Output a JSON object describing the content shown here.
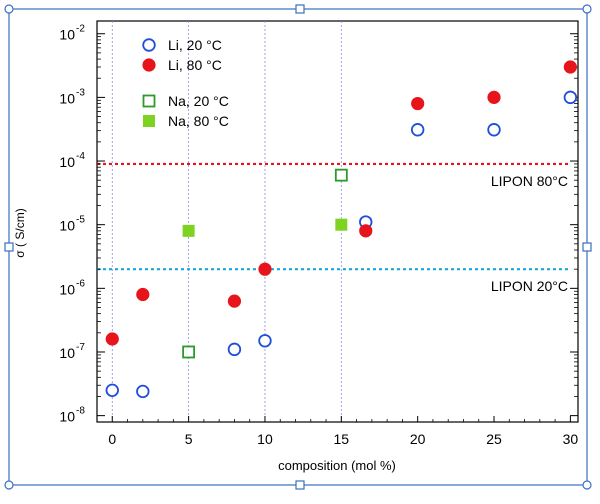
{
  "chart_data": {
    "type": "scatter",
    "xlabel": "composition (mol %)",
    "ylabel": "σ ( S/cm)",
    "xlim": [
      -1,
      30.5
    ],
    "ylim_log10": [
      -8.1,
      -1.8
    ],
    "y_scale": "log",
    "x_ticks": [
      0,
      5,
      10,
      15,
      20,
      25,
      30
    ],
    "x_tick_labels": [
      "0",
      "5",
      "10",
      "15",
      "20",
      "25",
      "30"
    ],
    "y_ticks_exp": [
      -8,
      -7,
      -6,
      -5,
      -4,
      -3,
      -2
    ],
    "y_tick_base": "10",
    "y_tick_exps": [
      "-8",
      "-7",
      "-6",
      "-5",
      "-4",
      "-3",
      "-2"
    ],
    "vertical_gridlines_at": [
      0,
      5,
      10,
      15
    ],
    "legend_position": "top-left",
    "series": [
      {
        "name": "Li, 20 °C",
        "marker": "open-circle",
        "color": "#1f4fd8",
        "points": [
          [
            0,
            2.5e-08
          ],
          [
            2,
            2.4e-08
          ],
          [
            8,
            1.1e-07
          ],
          [
            10,
            1.5e-07
          ],
          [
            16.6,
            1.1e-05
          ],
          [
            20,
            0.00031
          ],
          [
            25,
            0.00031
          ],
          [
            30,
            0.001
          ]
        ]
      },
      {
        "name": "Li, 80 °C",
        "marker": "filled-circle",
        "color": "#e8141b",
        "points": [
          [
            0,
            1.6e-07
          ],
          [
            2,
            8e-07
          ],
          [
            8,
            6.3e-07
          ],
          [
            10,
            2e-06
          ],
          [
            16.6,
            8e-06
          ],
          [
            20,
            0.0008
          ],
          [
            25,
            0.001
          ],
          [
            30,
            0.003
          ]
        ]
      },
      {
        "name": "Na, 20 °C",
        "marker": "open-square",
        "color": "#2a9a2a",
        "points": [
          [
            5,
            1e-07
          ],
          [
            15,
            6e-05
          ]
        ]
      },
      {
        "name": "Na, 80 °C",
        "marker": "filled-square",
        "color": "#7ed321",
        "points": [
          [
            5,
            8e-06
          ],
          [
            15,
            1e-05
          ]
        ]
      }
    ],
    "reference_lines": [
      {
        "label": "LIPON 80°C",
        "y": 9e-05,
        "color": "#e8141b",
        "style": "dotted"
      },
      {
        "label": "LIPON 20°C",
        "y": 2e-06,
        "color": "#1aa7e0",
        "style": "dotted"
      }
    ]
  }
}
